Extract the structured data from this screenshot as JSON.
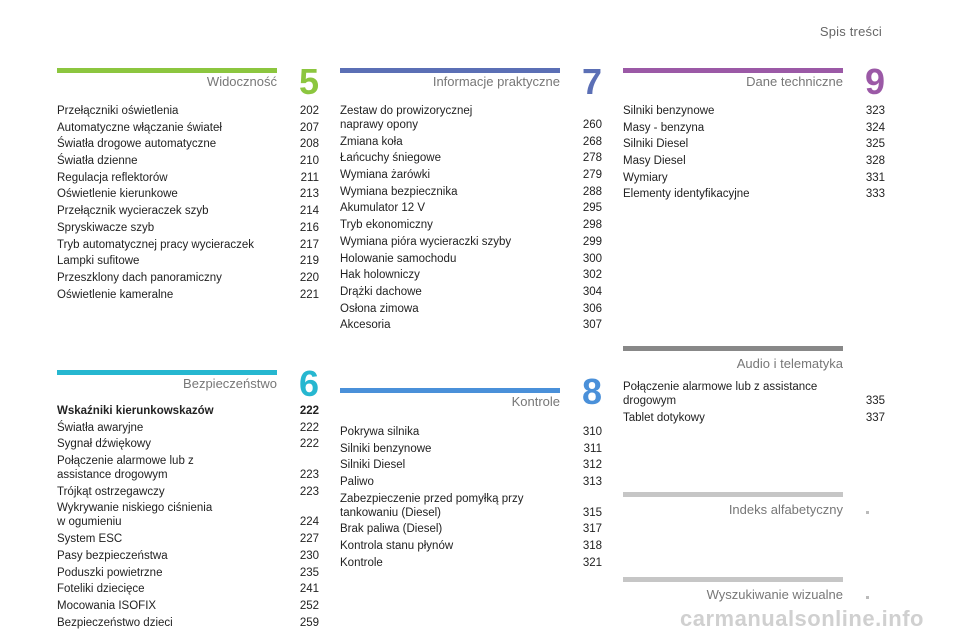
{
  "header": {
    "title": "Spis treści"
  },
  "sections": {
    "s5": {
      "label": "Widoczność",
      "number": "5",
      "color": "#8cc63f",
      "items": [
        {
          "text": "Przełączniki oświetlenia",
          "page": "202"
        },
        {
          "text": "Automatyczne włączanie świateł",
          "page": "207"
        },
        {
          "text": "Światła drogowe automatyczne",
          "page": "208"
        },
        {
          "text": "Światła dzienne",
          "page": "210"
        },
        {
          "text": "Regulacja reflektorów",
          "page": "211"
        },
        {
          "text": "Oświetlenie kierunkowe",
          "page": "213"
        },
        {
          "text": "Przełącznik wycieraczek szyb",
          "page": "214"
        },
        {
          "text": "Spryskiwacze szyb",
          "page": "216"
        },
        {
          "text": "Tryb automatycznej pracy wycieraczek",
          "page": "217"
        },
        {
          "text": "Lampki sufitowe",
          "page": "219"
        },
        {
          "text": "Przeszklony dach panoramiczny",
          "page": "220"
        },
        {
          "text": "Oświetlenie kameralne",
          "page": "221"
        }
      ]
    },
    "s6": {
      "label": "Bezpieczeństwo",
      "number": "6",
      "color": "#26b7d0",
      "items": [
        {
          "text": "Wskaźniki kierunkowskazów",
          "page": "222",
          "bold": true
        },
        {
          "text": "Światła awaryjne",
          "page": "222"
        },
        {
          "text": "Sygnał dźwiękowy",
          "page": "222"
        },
        {
          "text": "Połączenie alarmowe lub z assistance drogowym",
          "page": "223"
        },
        {
          "text": "Trójkąt ostrzegawczy",
          "page": "223"
        },
        {
          "text": "Wykrywanie niskiego ciśnienia w ogumieniu",
          "page": "224"
        },
        {
          "text": "System ESC",
          "page": "227"
        },
        {
          "text": "Pasy bezpieczeństwa",
          "page": "230"
        },
        {
          "text": "Poduszki powietrzne",
          "page": "235"
        },
        {
          "text": "Foteliki dziecięce",
          "page": "241"
        },
        {
          "text": "Mocowania ISOFIX",
          "page": "252"
        },
        {
          "text": "Bezpieczeństwo dzieci",
          "page": "259"
        }
      ]
    },
    "s7": {
      "label": "Informacje praktyczne",
      "number": "7",
      "color": "#5b6fb5",
      "items": [
        {
          "text": "Zestaw do prowizorycznej naprawy opony",
          "page": "260"
        },
        {
          "text": "Zmiana koła",
          "page": "268"
        },
        {
          "text": "Łańcuchy śniegowe",
          "page": "278"
        },
        {
          "text": "Wymiana żarówki",
          "page": "279"
        },
        {
          "text": "Wymiana bezpiecznika",
          "page": "288"
        },
        {
          "text": "Akumulator 12 V",
          "page": "295"
        },
        {
          "text": "Tryb ekonomiczny",
          "page": "298"
        },
        {
          "text": "Wymiana pióra wycieraczki szyby",
          "page": "299"
        },
        {
          "text": "Holowanie samochodu",
          "page": "300"
        },
        {
          "text": "Hak holowniczy",
          "page": "302"
        },
        {
          "text": "Drążki dachowe",
          "page": "304"
        },
        {
          "text": "Osłona zimowa",
          "page": "306"
        },
        {
          "text": "Akcesoria",
          "page": "307"
        }
      ]
    },
    "s8": {
      "label": "Kontrole",
      "number": "8",
      "color": "#4a90d9",
      "items": [
        {
          "text": "Pokrywa silnika",
          "page": "310"
        },
        {
          "text": "Silniki benzynowe",
          "page": "311"
        },
        {
          "text": "Silniki Diesel",
          "page": "312"
        },
        {
          "text": "Paliwo",
          "page": "313"
        },
        {
          "text": "Zabezpieczenie przed pomyłką przy tankowaniu (Diesel)",
          "page": "315"
        },
        {
          "text": "Brak paliwa (Diesel)",
          "page": "317"
        },
        {
          "text": "Kontrola stanu płynów",
          "page": "318"
        },
        {
          "text": "Kontrole",
          "page": "321"
        }
      ]
    },
    "s9": {
      "label": "Dane techniczne",
      "number": "9",
      "color": "#9b59a6",
      "items": [
        {
          "text": "Silniki benzynowe",
          "page": "323"
        },
        {
          "text": "Masy - benzyna",
          "page": "324"
        },
        {
          "text": "Silniki Diesel",
          "page": "325"
        },
        {
          "text": "Masy Diesel",
          "page": "328"
        },
        {
          "text": "Wymiary",
          "page": "331"
        },
        {
          "text": "Elementy identyfikacyjne",
          "page": "333"
        }
      ]
    },
    "audio": {
      "label": "Audio i telematyka",
      "color": "#888888",
      "items": [
        {
          "text": "Połączenie alarmowe lub z assistance drogowym",
          "page": "335"
        },
        {
          "text": "Tablet dotykowy",
          "page": "337"
        }
      ]
    }
  },
  "extras": {
    "index": {
      "label": "Indeks alfabetyczny"
    },
    "visual": {
      "label": "Wyszukiwanie wizualne"
    }
  },
  "watermark": "carmanualsonline.info"
}
